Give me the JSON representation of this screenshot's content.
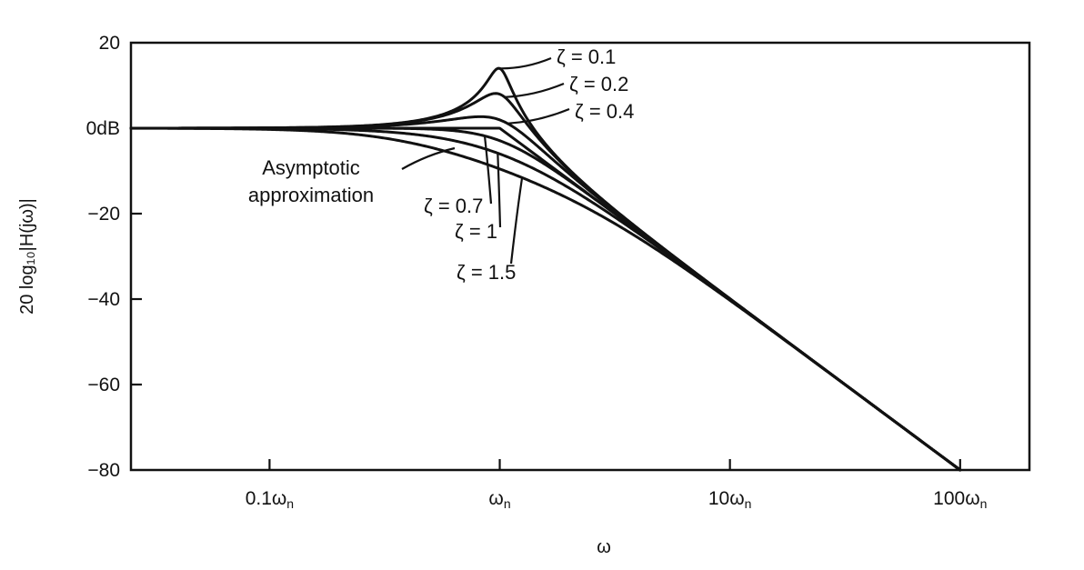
{
  "chart_data": {
    "type": "line",
    "xscale": "log",
    "xlim": [
      0.025,
      200
    ],
    "ylim": [
      -80,
      20
    ],
    "xlabel": "ω",
    "ylabel": "20 log₁₀|H(jω)|",
    "x_ticks": [
      {
        "value": 0.1,
        "label": "0.1ω",
        "sub": "n"
      },
      {
        "value": 1,
        "label": "ω",
        "sub": "n"
      },
      {
        "value": 10,
        "label": "10ω",
        "sub": "n"
      },
      {
        "value": 100,
        "label": "100ω",
        "sub": "n"
      }
    ],
    "y_ticks": [
      {
        "value": 20,
        "label": "20"
      },
      {
        "value": 0,
        "label": "0dB"
      },
      {
        "value": -20,
        "label": "−20"
      },
      {
        "value": -40,
        "label": "−40"
      },
      {
        "value": -60,
        "label": "−60"
      },
      {
        "value": -80,
        "label": "−80"
      }
    ],
    "series": [
      {
        "name": "ζ = 0.1",
        "zeta": 0.1
      },
      {
        "name": "ζ = 0.2",
        "zeta": 0.2
      },
      {
        "name": "ζ = 0.4",
        "zeta": 0.4
      },
      {
        "name": "ζ = 0.7",
        "zeta": 0.7
      },
      {
        "name": "ζ = 1",
        "zeta": 1
      },
      {
        "name": "ζ = 1.5",
        "zeta": 1.5
      },
      {
        "name": "Asymptotic approximation",
        "asymptotic": true
      }
    ],
    "annotations": [
      {
        "text": "ζ = 0.1",
        "zeta": 0.1
      },
      {
        "text": "ζ = 0.2",
        "zeta": 0.2
      },
      {
        "text": "ζ = 0.4",
        "zeta": 0.4
      },
      {
        "text": "ζ = 0.7",
        "zeta": 0.7
      },
      {
        "text": "ζ = 1",
        "zeta": 1
      },
      {
        "text": "ζ = 1.5",
        "zeta": 1.5
      },
      {
        "text": "Asymptotic",
        "text2": "approximation",
        "asymptotic": true
      }
    ]
  }
}
